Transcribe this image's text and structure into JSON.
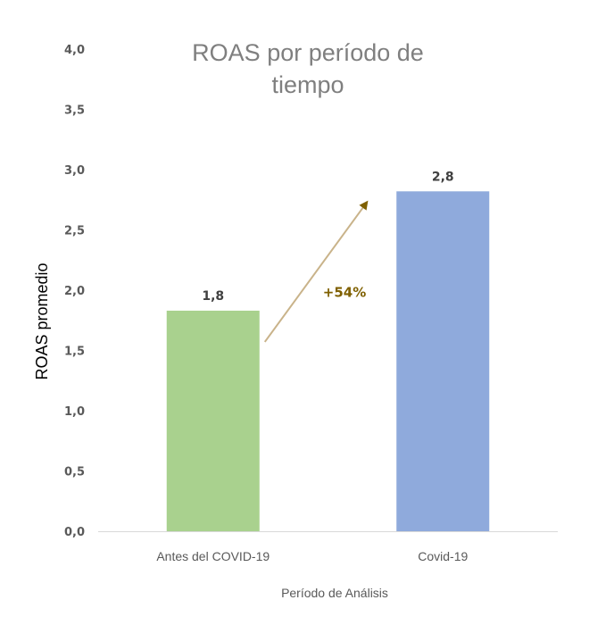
{
  "chart_data": {
    "type": "bar",
    "title_lines": [
      "ROAS por período de",
      "tiempo"
    ],
    "xlabel": "Período de Análisis",
    "ylabel": "ROAS promedio",
    "categories": [
      "Antes del COVID-19",
      "Covid-19"
    ],
    "values": [
      1.83,
      2.82
    ],
    "data_labels": [
      "1,8",
      "2,8"
    ],
    "bar_colors": [
      "#a9d18e",
      "#8faadc"
    ],
    "ylim": [
      0,
      4
    ],
    "yticks": [
      0,
      0.5,
      1,
      1.5,
      2,
      2.5,
      3,
      3.5,
      4
    ],
    "ytick_labels": [
      "0,0",
      "0,5",
      "1,0",
      "1,5",
      "2,0",
      "2,5",
      "3,0",
      "3,5",
      "4,0"
    ],
    "grid": false,
    "legend": "none",
    "annotation": {
      "text": "+54%",
      "color": "#7f6000",
      "arrow_color": "#c9b38a",
      "from_category": "Antes del COVID-19",
      "to_category": "Covid-19"
    },
    "axis_color": "#d9d9d9"
  }
}
